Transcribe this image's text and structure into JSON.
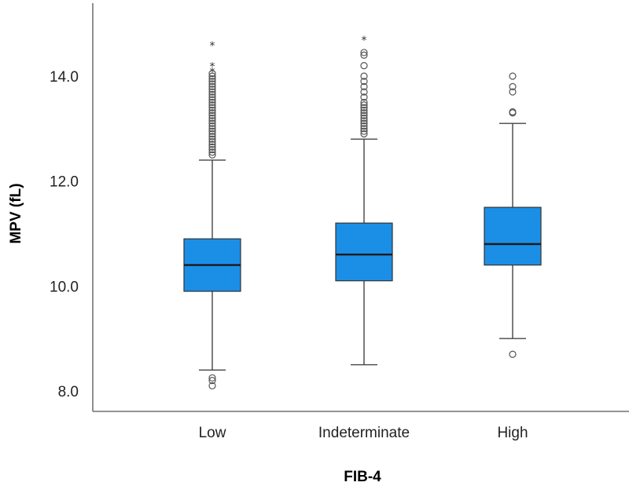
{
  "chart_data": {
    "type": "box",
    "title": "",
    "xlabel": "FIB-4",
    "ylabel": "MPV (fL)",
    "ylim": [
      7.9,
      15.3
    ],
    "yticks": [
      8.0,
      10.0,
      12.0,
      14.0
    ],
    "ytick_labels": [
      "8.0",
      "10.0",
      "12.0",
      "14.0"
    ],
    "box_color": "#1b8fe6",
    "series": [
      {
        "name": "Low",
        "whisker_low": 8.4,
        "q1": 9.9,
        "median": 10.4,
        "q3": 10.9,
        "whisker_high": 12.4,
        "outliers": [
          8.1,
          8.2,
          8.25,
          12.5,
          12.55,
          12.6,
          12.65,
          12.7,
          12.75,
          12.8,
          12.85,
          12.9,
          12.95,
          13.0,
          13.05,
          13.1,
          13.15,
          13.2,
          13.25,
          13.3,
          13.35,
          13.4,
          13.45,
          13.5,
          13.55,
          13.6,
          13.65,
          13.7,
          13.75,
          13.8,
          13.85,
          13.9,
          13.95,
          14.0,
          14.05
        ],
        "extremes": [
          14.1,
          14.2,
          14.6
        ]
      },
      {
        "name": "Indeterminate",
        "whisker_low": 8.5,
        "q1": 10.1,
        "median": 10.6,
        "q3": 11.2,
        "whisker_high": 12.8,
        "outliers": [
          12.9,
          12.95,
          13.0,
          13.05,
          13.1,
          13.15,
          13.2,
          13.25,
          13.3,
          13.35,
          13.4,
          13.45,
          13.5,
          13.6,
          13.7,
          13.8,
          13.9,
          14.0,
          14.2,
          14.4,
          14.45
        ],
        "extremes": [
          14.7
        ]
      },
      {
        "name": "High",
        "whisker_low": 9.0,
        "q1": 10.4,
        "median": 10.8,
        "q3": 11.5,
        "whisker_high": 13.1,
        "outliers": [
          8.7,
          13.3,
          13.32,
          13.7,
          13.8,
          14.0
        ],
        "extremes": []
      }
    ]
  }
}
